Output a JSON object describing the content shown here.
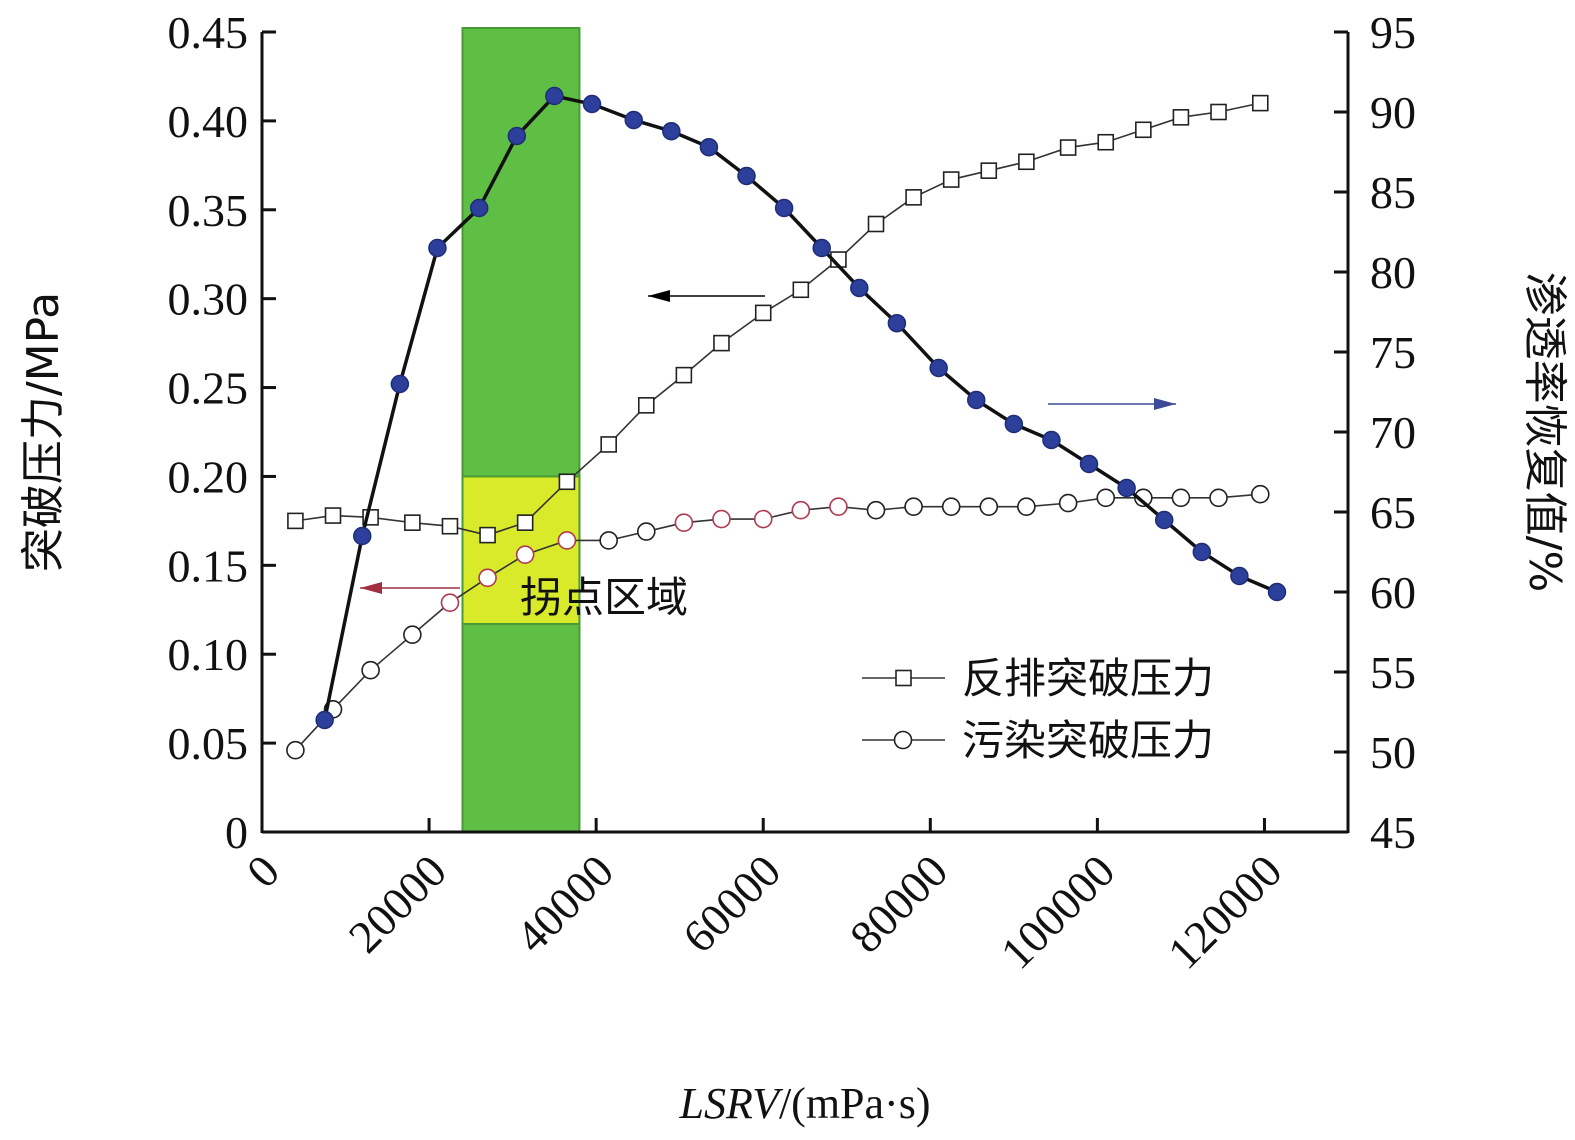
{
  "chart_data": {
    "type": "line",
    "xlabel_italic": "LSRV",
    "xlabel_unit": "/(mPa·s)",
    "ylabel_left": "突破压力/MPa",
    "ylabel_right": "渗透率恢复值/%",
    "xlim": [
      0,
      130000
    ],
    "ylim_left": [
      0,
      0.45
    ],
    "ylim_right": [
      45,
      95
    ],
    "x_ticks": [
      "0",
      "20000",
      "40000",
      "60000",
      "80000",
      "100000",
      "120000"
    ],
    "y_left_ticks": [
      "0",
      "0.05",
      "0.10",
      "0.15",
      "0.20",
      "0.25",
      "0.30",
      "0.35",
      "0.40",
      "0.45"
    ],
    "y_right_ticks": [
      "45",
      "50",
      "55",
      "60",
      "65",
      "70",
      "75",
      "80",
      "85",
      "90",
      "95"
    ],
    "inflection_region": {
      "label": "拐点区域",
      "x_range": [
        24000,
        38000
      ],
      "y_left_range": [
        0.117,
        0.2
      ]
    },
    "series": [
      {
        "name": "反排突破压力",
        "axis": "left",
        "marker": "square",
        "x": [
          4000,
          8500,
          13000,
          18000,
          22500,
          27000,
          31500,
          36500,
          41500,
          46000,
          50500,
          55000,
          60000,
          64500,
          69000,
          73500,
          78000,
          82500,
          87000,
          91500,
          96500,
          101000,
          105500,
          110000,
          114500,
          119500
        ],
        "values": [
          0.175,
          0.178,
          0.177,
          0.174,
          0.172,
          0.167,
          0.174,
          0.197,
          0.218,
          0.24,
          0.257,
          0.275,
          0.292,
          0.305,
          0.322,
          0.342,
          0.357,
          0.367,
          0.372,
          0.377,
          0.385,
          0.388,
          0.395,
          0.402,
          0.405,
          0.41
        ]
      },
      {
        "name": "污染突破压力",
        "axis": "left",
        "marker": "circle",
        "x": [
          4000,
          8500,
          13000,
          18000,
          22500,
          27000,
          31500,
          36500,
          41500,
          46000,
          50500,
          55000,
          60000,
          64500,
          69000,
          73500,
          78000,
          82500,
          87000,
          91500,
          96500,
          101000,
          105500,
          110000,
          114500,
          119500
        ],
        "values": [
          0.046,
          0.069,
          0.091,
          0.111,
          0.129,
          0.143,
          0.156,
          0.164,
          0.164,
          0.169,
          0.174,
          0.176,
          0.176,
          0.181,
          0.183,
          0.181,
          0.183,
          0.183,
          0.183,
          0.183,
          0.185,
          0.188,
          0.188,
          0.188,
          0.188,
          0.19
        ]
      },
      {
        "axis": "right",
        "marker": "filled-circle",
        "x": [
          7500,
          12000,
          16500,
          21000,
          26000,
          30500,
          35000,
          39500,
          44500,
          49000,
          53500,
          58000,
          62500,
          67000,
          71500,
          76000,
          81000,
          85500,
          90000,
          94500,
          99000,
          103500,
          108000,
          112500,
          117000,
          121500
        ],
        "values": [
          52,
          63.5,
          73,
          81.5,
          84,
          88.5,
          91,
          90.5,
          89.5,
          88.8,
          87.8,
          86,
          84,
          81.5,
          79,
          76.8,
          74,
          72,
          70.5,
          69.5,
          68,
          66.5,
          64.5,
          62.5,
          61,
          60
        ]
      }
    ],
    "legend": {
      "position": "bottom-right"
    },
    "grid": false,
    "annotation_arrows": [
      {
        "direction": "left",
        "color": "#000000"
      },
      {
        "direction": "left",
        "color": "#a03040"
      },
      {
        "direction": "right",
        "color": "#3c4a9a"
      }
    ],
    "colors": {
      "axis": "#111111",
      "green_band": "#5fbf45",
      "green_band_edge": "#4a9a35",
      "yellow_zone": "#d8ea2a",
      "filled_marker": "#2c3f9a",
      "filled_marker_edge": "#1e2d78",
      "open_marker_edge": "#222222",
      "open_marker_highlight_edge": "#b03a50"
    }
  }
}
